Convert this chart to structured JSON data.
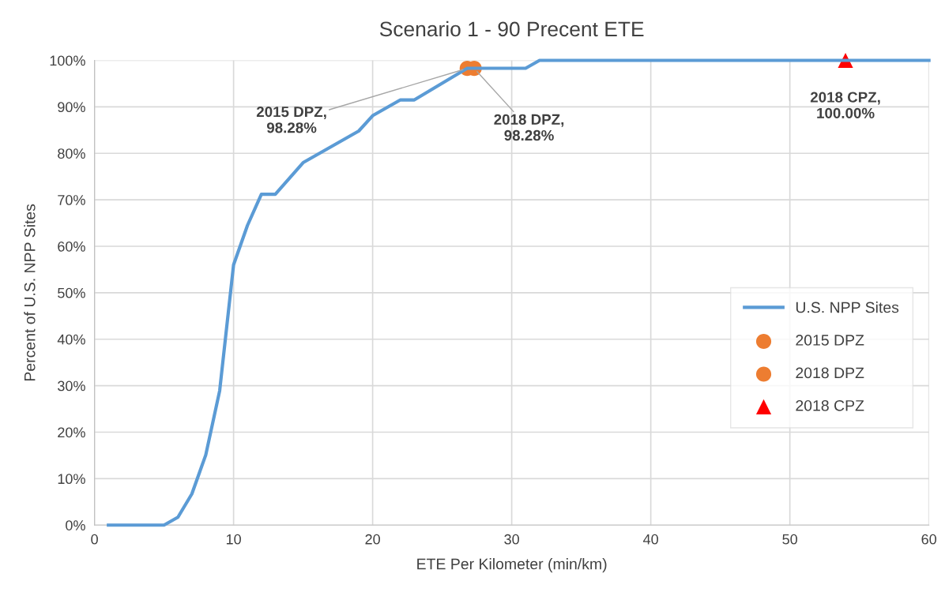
{
  "chart_data": {
    "type": "line",
    "title": "Scenario 1 - 90 Precent ETE",
    "xlabel": "ETE Per Kilometer (min/km)",
    "ylabel": "Percent of U.S. NPP Sites",
    "xlim": [
      0,
      60
    ],
    "xticks": [
      0,
      10,
      20,
      30,
      40,
      50,
      60
    ],
    "ylim": [
      0,
      100
    ],
    "yticks": [
      {
        "value": 0,
        "label": "0%"
      },
      {
        "value": 10,
        "label": "10%"
      },
      {
        "value": 20,
        "label": "20%"
      },
      {
        "value": 30,
        "label": "30%"
      },
      {
        "value": 40,
        "label": "40%"
      },
      {
        "value": 50,
        "label": "50%"
      },
      {
        "value": 60,
        "label": "60%"
      },
      {
        "value": 70,
        "label": "70%"
      },
      {
        "value": 80,
        "label": "80%"
      },
      {
        "value": 90,
        "label": "90%"
      },
      {
        "value": 100,
        "label": "100%"
      }
    ],
    "grid": true,
    "legend": "right",
    "series": [
      {
        "name": "U.S. NPP Sites",
        "type": "line",
        "color": "#5b9bd5",
        "marker": "none",
        "x": [
          1,
          5,
          6,
          7,
          8,
          9,
          10,
          11,
          12,
          13,
          15,
          19,
          20,
          22,
          23,
          26.8,
          31,
          32,
          60
        ],
        "values": [
          0,
          0,
          1.7,
          6.7,
          15.1,
          28.9,
          56.0,
          64.5,
          71.2,
          71.2,
          78.0,
          84.8,
          88.1,
          91.5,
          91.5,
          98.3,
          98.3,
          100,
          100
        ]
      },
      {
        "name": "2015 DPZ",
        "type": "scatter",
        "color": "#ed7d31",
        "marker": "circle",
        "x": [
          26.8
        ],
        "values": [
          98.28
        ]
      },
      {
        "name": "2018 DPZ",
        "type": "scatter",
        "color": "#ed7d31",
        "marker": "circle",
        "x": [
          27.3
        ],
        "values": [
          98.28
        ]
      },
      {
        "name": "2018 CPZ",
        "type": "scatter",
        "color": "#ff0000",
        "marker": "triangle",
        "x": [
          54
        ],
        "values": [
          100
        ]
      }
    ],
    "annotations": [
      {
        "text": "2015 DPZ,\n98.28%",
        "x": 26.8,
        "y": 98.28
      },
      {
        "text": "2018 DPZ,\n98.28%",
        "x": 27.3,
        "y": 98.28
      },
      {
        "text": "2018 CPZ,\n100.00%",
        "x": 54,
        "y": 100
      }
    ]
  }
}
